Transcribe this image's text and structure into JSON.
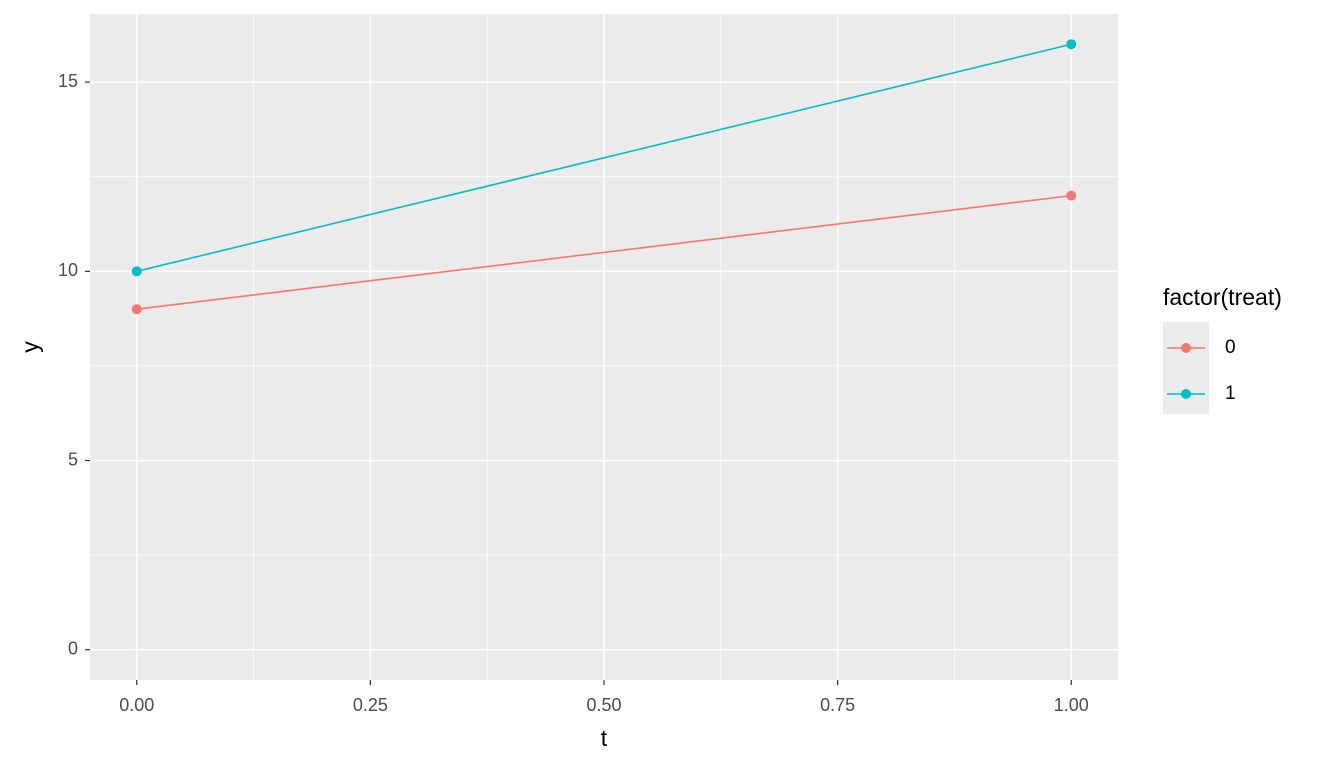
{
  "chart_data": {
    "type": "line",
    "x_label": "t",
    "y_label": "y",
    "x": [
      0,
      1
    ],
    "series": [
      {
        "name": "0",
        "color": "#F8766D",
        "values": [
          9,
          12
        ]
      },
      {
        "name": "1",
        "color": "#00BFC4",
        "values": [
          10,
          16
        ]
      }
    ],
    "xlim": [
      -0.05,
      1.05
    ],
    "xticks": [
      {
        "value": 0,
        "label": "0.00"
      },
      {
        "value": 0.25,
        "label": "0.25"
      },
      {
        "value": 0.5,
        "label": "0.50"
      },
      {
        "value": 0.75,
        "label": "0.75"
      },
      {
        "value": 1,
        "label": "1.00"
      }
    ],
    "ylim": [
      -0.8,
      16.8
    ],
    "yticks": [
      0,
      5,
      10,
      15
    ],
    "grid": true,
    "minor_grid": true,
    "legend_title": "factor(treat)",
    "legend_position": "right"
  }
}
